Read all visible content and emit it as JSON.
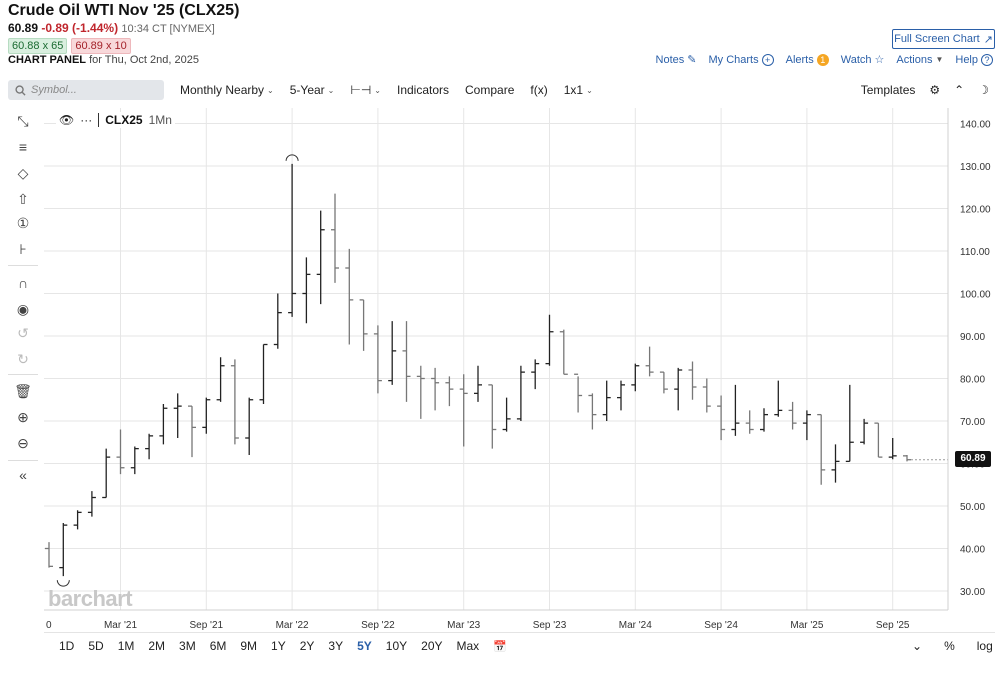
{
  "header": {
    "title": "Crude Oil WTI Nov '25 (CLX25)",
    "last": "60.89",
    "change": "-0.89 (-1.44%)",
    "time": "10:34 CT [NYMEX]",
    "bid": "60.88 x 65",
    "ask": "60.89 x 10",
    "panel_label": "CHART PANEL",
    "panel_date": "for Thu, Oct 2nd, 2025",
    "fullscreen": "Full Screen Chart"
  },
  "links": {
    "notes": "Notes",
    "mycharts": "My Charts",
    "alerts": "Alerts",
    "alerts_count": "1",
    "watch": "Watch",
    "actions": "Actions",
    "help": "Help"
  },
  "toolbar": {
    "symbol_placeholder": "Symbol...",
    "period": "Monthly Nearby",
    "range": "5-Year",
    "indicators": "Indicators",
    "compare": "Compare",
    "fx": "f(x)",
    "layout": "1x1",
    "templates": "Templates"
  },
  "legend": {
    "symbol": "CLX25",
    "period": "1Mn",
    "dots": "···"
  },
  "watermark": "barchart",
  "last_label": "60.89",
  "ranges": [
    "1D",
    "5D",
    "1M",
    "2M",
    "3M",
    "6M",
    "9M",
    "1Y",
    "2Y",
    "3Y",
    "5Y",
    "10Y",
    "20Y",
    "Max"
  ],
  "active_range": "5Y",
  "bottom": {
    "percent": "%",
    "log": "log"
  },
  "colors": {
    "accent": "#2a5fa8",
    "down": "#c0262d",
    "grid": "#e6e6e6",
    "bar": "#222222"
  },
  "chart_data": {
    "type": "ohlc",
    "title": "",
    "xlabel": "",
    "ylabel": "",
    "ylim": [
      25,
      142
    ],
    "yticks": [
      30,
      40,
      50,
      60,
      70,
      80,
      90,
      100,
      110,
      120,
      130,
      140
    ],
    "ytick_labels": [
      "30.00",
      "40.00",
      "50.00",
      "60.00",
      "70.00",
      "80.00",
      "90.00",
      "100.00",
      "110.00",
      "120.00",
      "130.00",
      "140.00"
    ],
    "xticks": [
      {
        "i": 0,
        "label": "0"
      },
      {
        "i": 5,
        "label": "Mar '21"
      },
      {
        "i": 11,
        "label": "Sep '21"
      },
      {
        "i": 17,
        "label": "Mar '22"
      },
      {
        "i": 23,
        "label": "Sep '22"
      },
      {
        "i": 29,
        "label": "Mar '23"
      },
      {
        "i": 35,
        "label": "Sep '23"
      },
      {
        "i": 41,
        "label": "Mar '24"
      },
      {
        "i": 47,
        "label": "Sep '24"
      },
      {
        "i": 53,
        "label": "Mar '25"
      },
      {
        "i": 59,
        "label": "Sep '25"
      }
    ],
    "grid": true,
    "last_value": 60.89,
    "high_marker": {
      "i": 17,
      "value": 130.5
    },
    "low_marker": {
      "i": 1,
      "value": 33.5
    },
    "bars": [
      {
        "date": "Oct '20",
        "o": 40.0,
        "h": 41.5,
        "l": 35.5,
        "c": 35.8
      },
      {
        "date": "Nov '20",
        "o": 35.5,
        "h": 46.0,
        "l": 33.5,
        "c": 45.5
      },
      {
        "date": "Dec '20",
        "o": 45.5,
        "h": 49.0,
        "l": 44.5,
        "c": 48.5
      },
      {
        "date": "Jan '21",
        "o": 48.5,
        "h": 53.5,
        "l": 47.5,
        "c": 52.0
      },
      {
        "date": "Feb '21",
        "o": 52.0,
        "h": 63.5,
        "l": 52.0,
        "c": 61.5
      },
      {
        "date": "Mar '21",
        "o": 61.5,
        "h": 68.0,
        "l": 57.5,
        "c": 59.0
      },
      {
        "date": "Apr '21",
        "o": 59.0,
        "h": 64.0,
        "l": 57.5,
        "c": 63.5
      },
      {
        "date": "May '21",
        "o": 63.5,
        "h": 67.0,
        "l": 61.0,
        "c": 66.5
      },
      {
        "date": "Jun '21",
        "o": 66.5,
        "h": 74.0,
        "l": 64.5,
        "c": 73.0
      },
      {
        "date": "Jul '21",
        "o": 73.0,
        "h": 76.5,
        "l": 66.0,
        "c": 73.5
      },
      {
        "date": "Aug '21",
        "o": 73.5,
        "h": 73.5,
        "l": 61.5,
        "c": 68.5
      },
      {
        "date": "Sep '21",
        "o": 68.5,
        "h": 75.5,
        "l": 67.0,
        "c": 75.0
      },
      {
        "date": "Oct '21",
        "o": 75.0,
        "h": 85.0,
        "l": 74.5,
        "c": 83.0
      },
      {
        "date": "Nov '21",
        "o": 83.0,
        "h": 84.5,
        "l": 64.5,
        "c": 66.0
      },
      {
        "date": "Dec '21",
        "o": 66.0,
        "h": 75.5,
        "l": 62.0,
        "c": 75.0
      },
      {
        "date": "Jan '22",
        "o": 75.0,
        "h": 88.0,
        "l": 74.0,
        "c": 88.0
      },
      {
        "date": "Feb '22",
        "o": 88.0,
        "h": 100.0,
        "l": 87.0,
        "c": 95.5
      },
      {
        "date": "Mar '22",
        "o": 95.5,
        "h": 130.5,
        "l": 94.5,
        "c": 100.0
      },
      {
        "date": "Apr '22",
        "o": 100.0,
        "h": 108.5,
        "l": 93.0,
        "c": 104.5
      },
      {
        "date": "May '22",
        "o": 104.5,
        "h": 119.5,
        "l": 97.5,
        "c": 115.0
      },
      {
        "date": "Jun '22",
        "o": 115.0,
        "h": 123.5,
        "l": 102.5,
        "c": 106.0
      },
      {
        "date": "Jul '22",
        "o": 106.0,
        "h": 110.5,
        "l": 88.0,
        "c": 98.5
      },
      {
        "date": "Aug '22",
        "o": 98.5,
        "h": 98.5,
        "l": 86.5,
        "c": 90.5
      },
      {
        "date": "Sep '22",
        "o": 90.5,
        "h": 92.5,
        "l": 76.5,
        "c": 79.5
      },
      {
        "date": "Oct '22",
        "o": 79.5,
        "h": 93.5,
        "l": 78.5,
        "c": 86.5
      },
      {
        "date": "Nov '22",
        "o": 86.5,
        "h": 93.5,
        "l": 74.5,
        "c": 80.5
      },
      {
        "date": "Dec '22",
        "o": 80.5,
        "h": 83.0,
        "l": 70.5,
        "c": 80.0
      },
      {
        "date": "Jan '23",
        "o": 80.0,
        "h": 82.5,
        "l": 72.5,
        "c": 79.0
      },
      {
        "date": "Feb '23",
        "o": 79.0,
        "h": 80.5,
        "l": 73.5,
        "c": 77.5
      },
      {
        "date": "Mar '23",
        "o": 77.5,
        "h": 81.0,
        "l": 64.0,
        "c": 76.5
      },
      {
        "date": "Apr '23",
        "o": 76.5,
        "h": 83.0,
        "l": 74.5,
        "c": 78.5
      },
      {
        "date": "May '23",
        "o": 78.5,
        "h": 78.5,
        "l": 63.5,
        "c": 68.0
      },
      {
        "date": "Jun '23",
        "o": 68.0,
        "h": 75.5,
        "l": 67.5,
        "c": 70.5
      },
      {
        "date": "Jul '23",
        "o": 70.5,
        "h": 83.0,
        "l": 70.0,
        "c": 81.5
      },
      {
        "date": "Aug '23",
        "o": 81.5,
        "h": 84.5,
        "l": 77.5,
        "c": 83.5
      },
      {
        "date": "Sep '23",
        "o": 83.5,
        "h": 95.0,
        "l": 83.0,
        "c": 91.0
      },
      {
        "date": "Oct '23",
        "o": 91.0,
        "h": 91.5,
        "l": 81.0,
        "c": 81.0
      },
      {
        "date": "Nov '23",
        "o": 81.0,
        "h": 80.5,
        "l": 72.0,
        "c": 76.0
      },
      {
        "date": "Dec '23",
        "o": 76.0,
        "h": 76.5,
        "l": 68.0,
        "c": 71.5
      },
      {
        "date": "Jan '24",
        "o": 71.5,
        "h": 79.5,
        "l": 70.0,
        "c": 75.5
      },
      {
        "date": "Feb '24",
        "o": 75.5,
        "h": 79.5,
        "l": 72.5,
        "c": 78.5
      },
      {
        "date": "Mar '24",
        "o": 78.5,
        "h": 83.5,
        "l": 77.0,
        "c": 83.0
      },
      {
        "date": "Apr '24",
        "o": 83.0,
        "h": 87.5,
        "l": 80.5,
        "c": 81.5
      },
      {
        "date": "May '24",
        "o": 81.5,
        "h": 81.5,
        "l": 76.5,
        "c": 77.5
      },
      {
        "date": "Jun '24",
        "o": 77.5,
        "h": 82.5,
        "l": 72.5,
        "c": 82.0
      },
      {
        "date": "Jul '24",
        "o": 82.0,
        "h": 84.0,
        "l": 75.0,
        "c": 78.0
      },
      {
        "date": "Aug '24",
        "o": 78.0,
        "h": 80.0,
        "l": 72.0,
        "c": 73.5
      },
      {
        "date": "Sep '24",
        "o": 73.5,
        "h": 76.0,
        "l": 65.5,
        "c": 68.0
      },
      {
        "date": "Oct '24",
        "o": 68.0,
        "h": 78.5,
        "l": 66.5,
        "c": 69.5
      },
      {
        "date": "Nov '24",
        "o": 69.5,
        "h": 72.5,
        "l": 67.0,
        "c": 68.0
      },
      {
        "date": "Dec '24",
        "o": 68.0,
        "h": 73.0,
        "l": 67.5,
        "c": 71.5
      },
      {
        "date": "Jan '25",
        "o": 71.5,
        "h": 79.5,
        "l": 71.0,
        "c": 72.5
      },
      {
        "date": "Feb '25",
        "o": 72.5,
        "h": 74.5,
        "l": 68.0,
        "c": 69.5
      },
      {
        "date": "Mar '25",
        "o": 69.5,
        "h": 72.5,
        "l": 65.5,
        "c": 71.5
      },
      {
        "date": "Apr '25",
        "o": 71.5,
        "h": 71.5,
        "l": 55.0,
        "c": 58.5
      },
      {
        "date": "May '25",
        "o": 58.5,
        "h": 64.5,
        "l": 55.5,
        "c": 60.5
      },
      {
        "date": "Jun '25",
        "o": 60.5,
        "h": 78.5,
        "l": 60.5,
        "c": 65.0
      },
      {
        "date": "Jul '25",
        "o": 65.0,
        "h": 70.5,
        "l": 64.5,
        "c": 69.5
      },
      {
        "date": "Aug '25",
        "o": 69.5,
        "h": 69.5,
        "l": 61.5,
        "c": 61.5
      },
      {
        "date": "Sep '25",
        "o": 61.5,
        "h": 66.0,
        "l": 61.0,
        "c": 61.8
      },
      {
        "date": "Oct '25",
        "o": 61.8,
        "h": 62.0,
        "l": 60.5,
        "c": 60.89
      }
    ]
  }
}
